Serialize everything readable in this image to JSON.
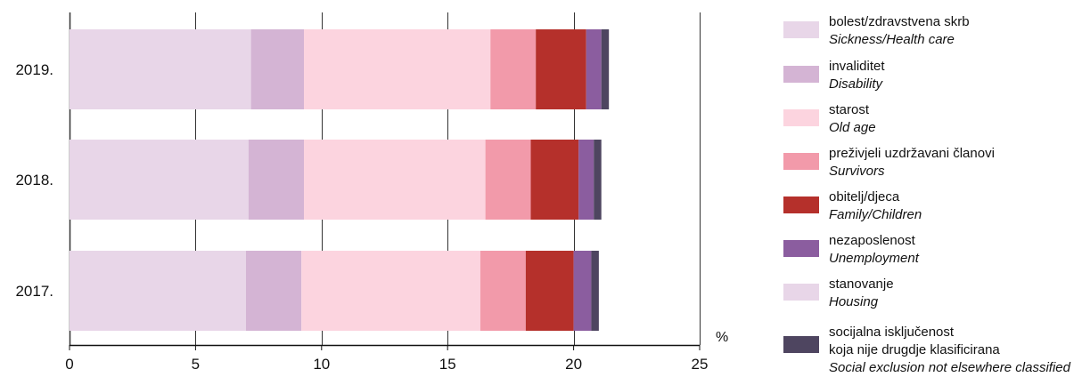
{
  "chart_data": {
    "type": "bar",
    "orientation": "horizontal",
    "stacked": true,
    "categories": [
      "2019.",
      "2018.",
      "2017."
    ],
    "x_axis": {
      "ticks": [
        0,
        5,
        10,
        15,
        20,
        25
      ],
      "tick_labels": [
        "0",
        "5",
        "10",
        "15",
        "20",
        "25"
      ],
      "range": [
        0,
        25
      ],
      "unit": "%",
      "grid": "vertical"
    },
    "series": [
      {
        "name": "bolest/zdravstvena skrb",
        "name_en": "Sickness/Health care",
        "color": "#e8d6e8",
        "values": [
          7.2,
          7.1,
          7.0
        ]
      },
      {
        "name": "invaliditet",
        "name_en": "Disability",
        "color": "#d4b4d4",
        "values": [
          2.1,
          2.2,
          2.2
        ]
      },
      {
        "name": "starost",
        "name_en": "Old age",
        "color": "#fcd4df",
        "values": [
          7.4,
          7.2,
          7.1
        ]
      },
      {
        "name": "preživjeli uzdržavani članovi",
        "name_en": "Survivors",
        "color": "#f29aaa",
        "values": [
          1.8,
          1.8,
          1.8
        ]
      },
      {
        "name": "obitelj/djeca",
        "name_en": "Family/Children",
        "color": "#b5302b",
        "values": [
          2.0,
          1.9,
          1.9
        ]
      },
      {
        "name": "nezaposlenost",
        "name_en": "Unemployment",
        "color": "#8b5d9f",
        "values": [
          0.6,
          0.6,
          0.7
        ]
      },
      {
        "name": "stanovanje",
        "name_en": "Housing",
        "color": "#e8d6e8",
        "values": [
          0.0,
          0.0,
          0.0
        ]
      },
      {
        "name": "socijalna isključenost koja nije drugdje klasificirana",
        "name_lines": [
          "socijalna isključenost",
          "koja nije drugdje klasificirana"
        ],
        "name_en": "Social exclusion not elsewhere classified",
        "color": "#4e4560",
        "values": [
          0.3,
          0.3,
          0.3
        ]
      }
    ],
    "legend_position": "right"
  }
}
